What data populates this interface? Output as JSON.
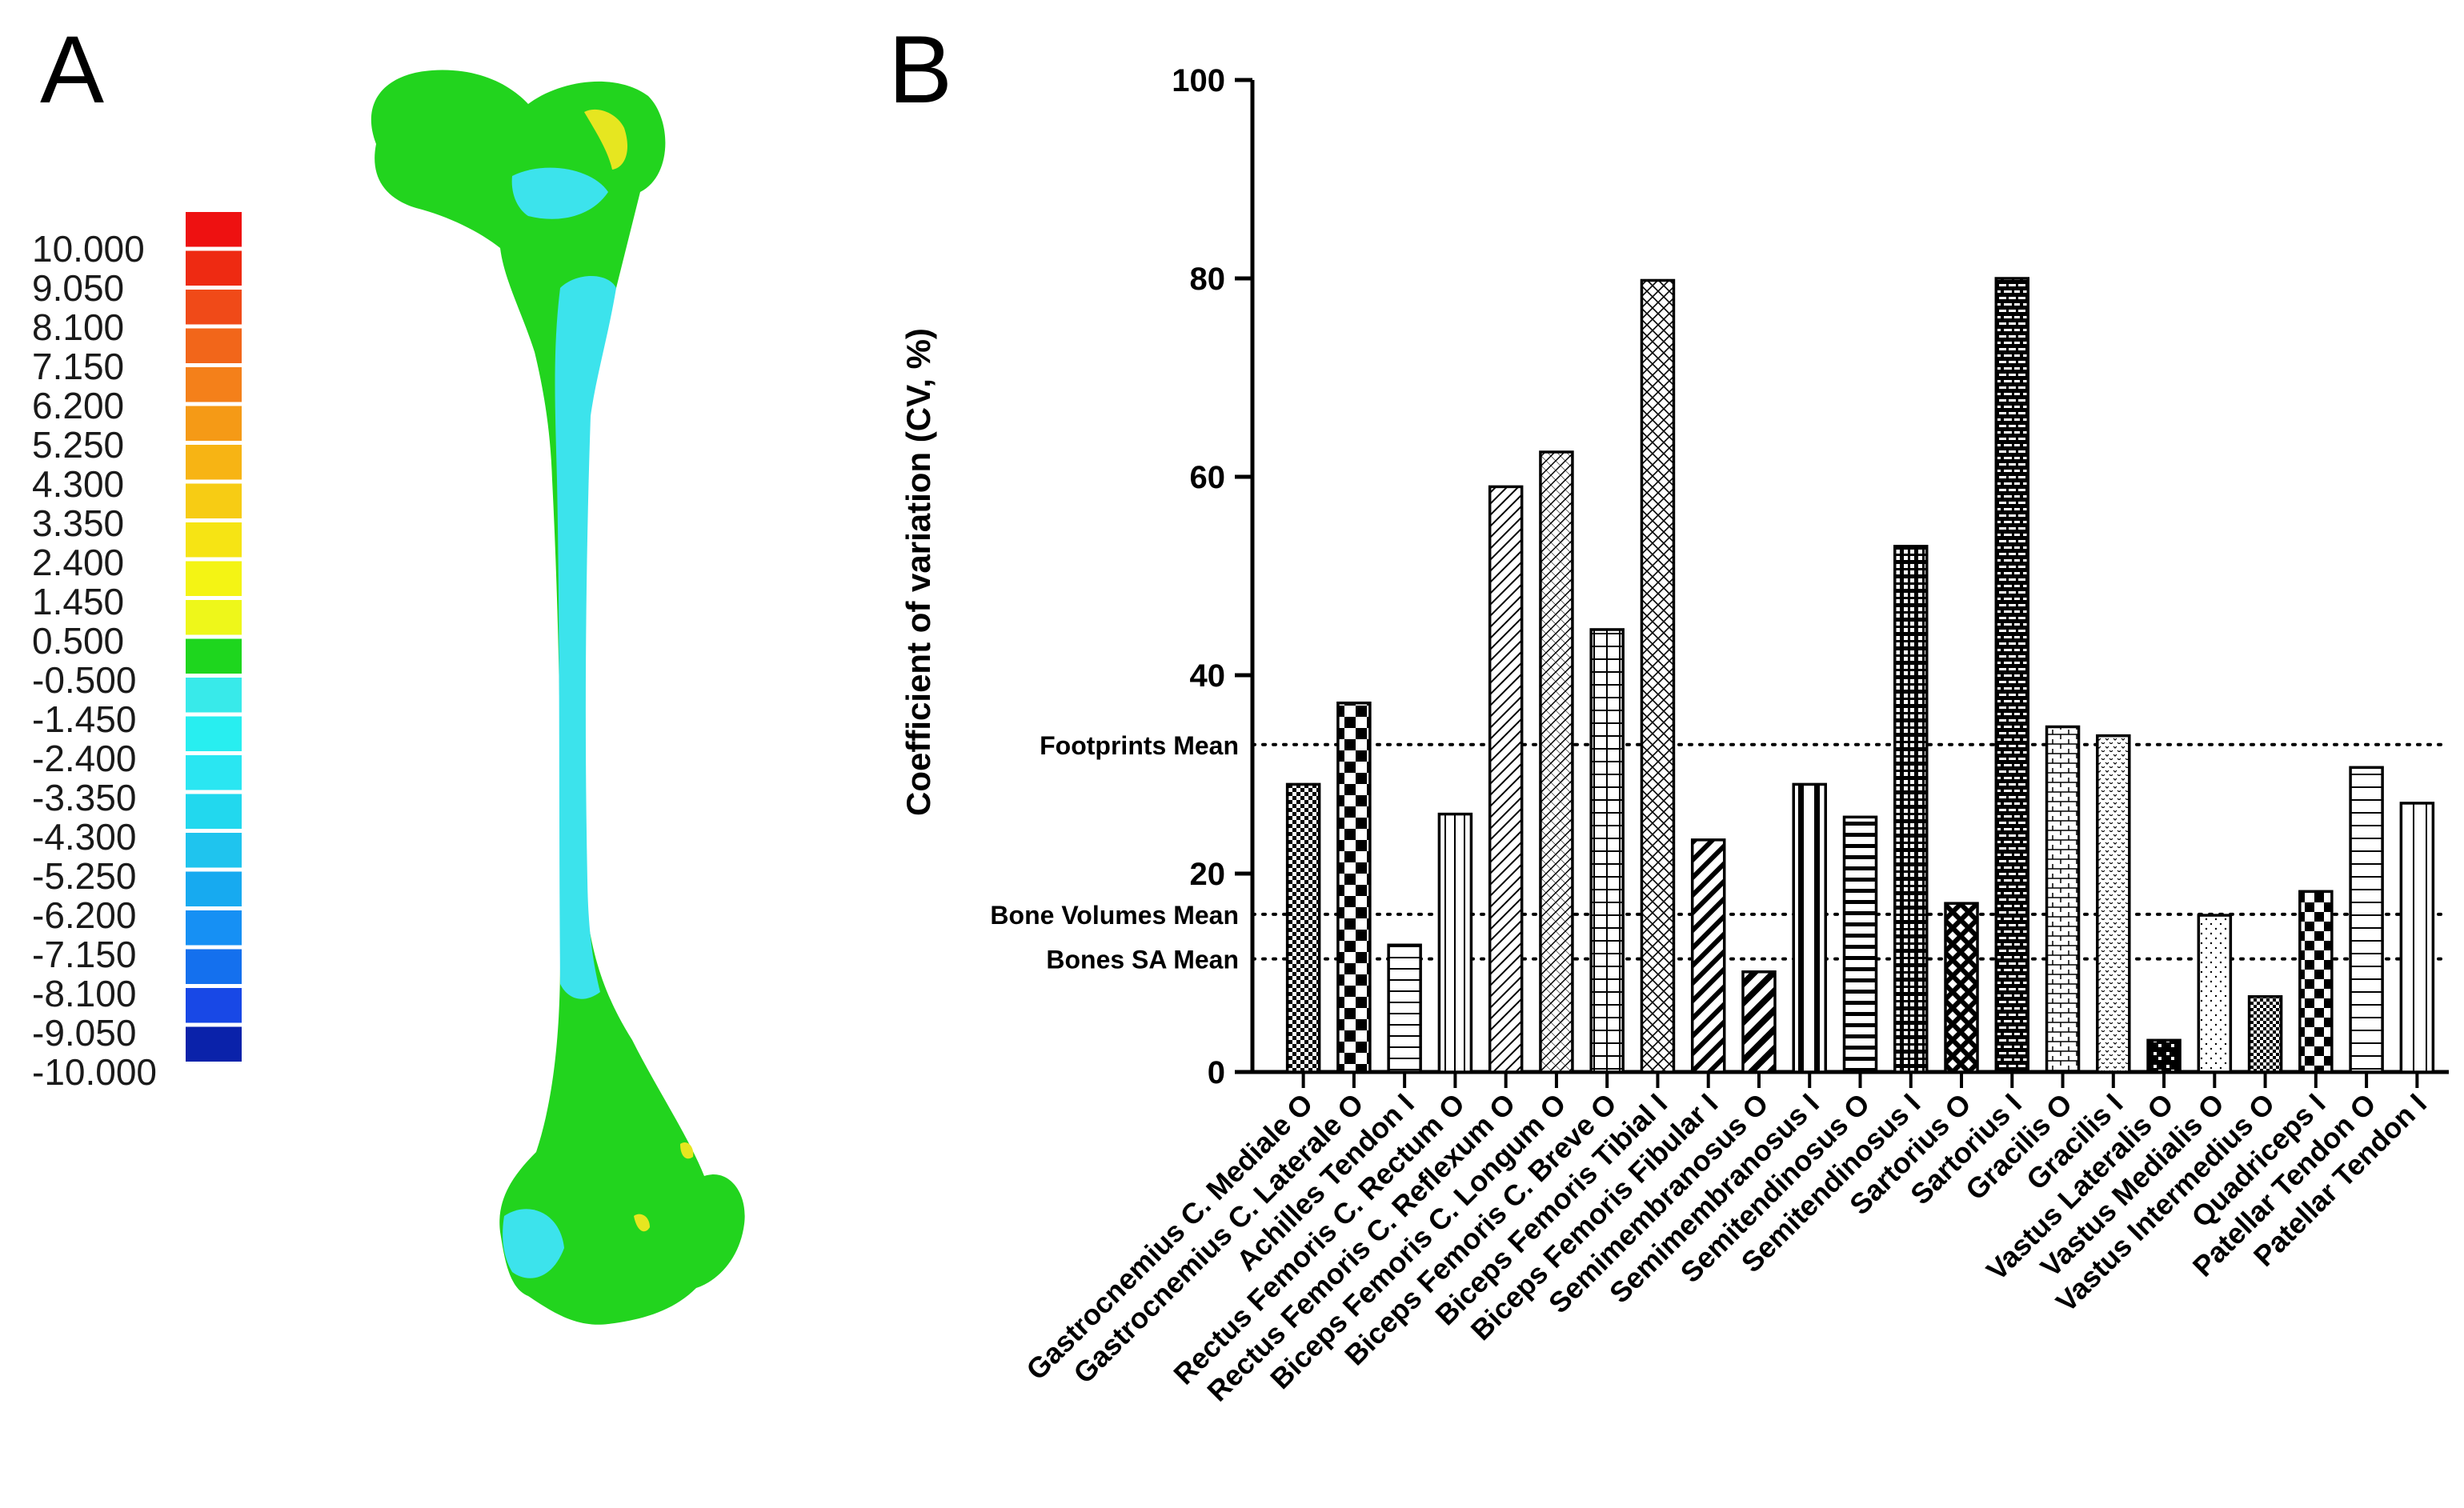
{
  "panel_a": {
    "letter": "A",
    "scale_labels": [
      "10.000",
      "9.050",
      "8.100",
      "7.150",
      "6.200",
      "5.250",
      "4.300",
      "3.350",
      "2.400",
      "1.450",
      "0.500",
      "-0.500",
      "-1.450",
      "-2.400",
      "-3.350",
      "-4.300",
      "-5.250",
      "-6.200",
      "-7.150",
      "-8.100",
      "-9.050",
      "-10.000"
    ],
    "scale_colors": [
      "#ee1111",
      "#ee2a12",
      "#f04a18",
      "#f2661a",
      "#f4801a",
      "#f59a16",
      "#f7b414",
      "#f7cc14",
      "#f6e414",
      "#f4f414",
      "#eef71a",
      "#1ed61e",
      "#38eaea",
      "#28eef0",
      "#2ae6f2",
      "#22d8ee",
      "#1fc4ee",
      "#17aaf0",
      "#1690f4",
      "#1470ee",
      "#1848e6",
      "#0a22aa"
    ],
    "bone_colors": {
      "primary": "#22d41e",
      "secondary": "#3ce3ec",
      "hot": "#e6e620"
    }
  },
  "panel_b": {
    "letter": "B",
    "chart_data": {
      "type": "bar",
      "ylabel": "Coefficient of variation (CV, %)",
      "xlabel": "",
      "ylim": [
        0,
        100
      ],
      "yticks": [
        "0",
        "20",
        "40",
        "60",
        "80",
        "100"
      ],
      "categories": [
        "Gastrocnemius C. Mediale O",
        "Gastrocnemius C. Laterale O",
        "Achilles Tendon I",
        "Rectus Femoris C. Rectum O",
        "Rectus Femoris C. Reflexum O",
        "Biceps Femoris C. Longum O",
        "Biceps Femoris C. Breve O",
        "Biceps Femoris Tibial I",
        "Biceps Femoris Fibular I",
        "Semimembranosus O",
        "Semimembranosus I",
        "Semitendinosus O",
        "Semitendinosus I",
        "Sartorius O",
        "Sartorius I",
        "Gracilis O",
        "Gracilis I",
        "Vastus Lateralis O",
        "Vastus Medialis O",
        "Vastus Intermedius O",
        "Quadriceps I",
        "Patellar Tendon O",
        "Patellar Tendon I"
      ],
      "values": [
        29,
        37.2,
        12.8,
        26,
        59,
        62.5,
        44.6,
        79.8,
        23.4,
        10.1,
        29,
        25.7,
        53,
        17,
        80,
        34.8,
        33.9,
        3.2,
        15.8,
        7.6,
        18.2,
        30.7,
        27.1
      ],
      "reference_lines": [
        {
          "label": "Footprints Mean",
          "value": 33
        },
        {
          "label": "Bone Volumes Mean",
          "value": 15.9
        },
        {
          "label": "Bones SA Mean",
          "value": 11.4
        }
      ],
      "grid": false,
      "legend": "none"
    }
  }
}
